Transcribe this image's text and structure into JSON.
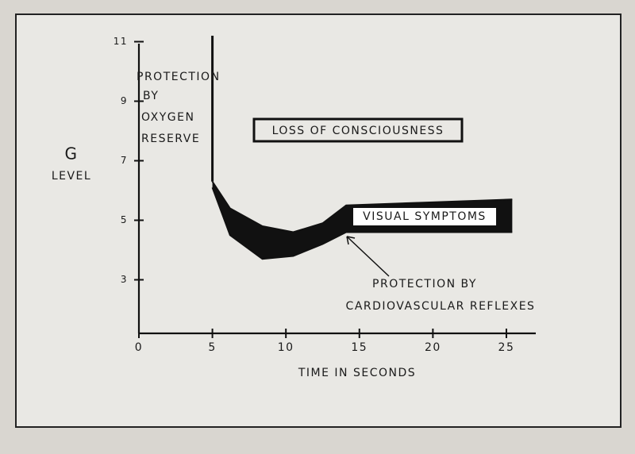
{
  "chart_data": {
    "type": "band",
    "ylabel_lines": [
      "G",
      "LEVEL"
    ],
    "xlabel": "TIME IN SECONDS",
    "xlim": [
      0,
      27
    ],
    "xticks": [
      0,
      5,
      10,
      15,
      20,
      25
    ],
    "ylim": [
      1.2,
      11.2
    ],
    "yticks": [
      3,
      5,
      7,
      9,
      11
    ],
    "color": "#111111",
    "line": {
      "x": [
        5,
        5
      ],
      "values": [
        11.2,
        6.3
      ]
    },
    "band": {
      "x": [
        5,
        6.2,
        8.4,
        10.5,
        12.5,
        14.1,
        25.4
      ],
      "upper": [
        6.3,
        5.4,
        4.8,
        4.6,
        4.9,
        5.5,
        5.7
      ],
      "lower": [
        6.1,
        4.5,
        3.7,
        3.8,
        4.2,
        4.6,
        4.6
      ]
    },
    "annotations": {
      "oxygen": [
        "PROTECTION",
        "BY",
        "OXYGEN",
        "RESERVE"
      ],
      "loss": "LOSS OF CONSCIOUSNESS",
      "visual": "VISUAL SYMPTOMS",
      "cardio": [
        "PROTECTION BY",
        "CARDIOVASCULAR REFLEXES"
      ]
    }
  }
}
